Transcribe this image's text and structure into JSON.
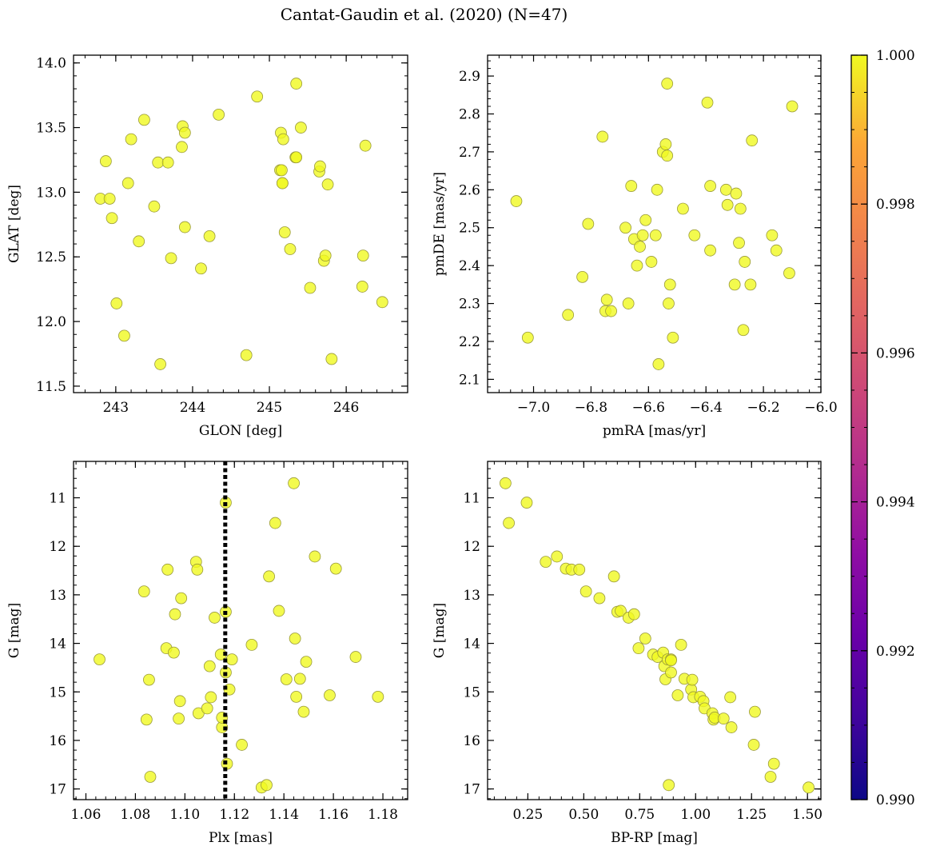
{
  "figure": {
    "title": "Cantat-Gaudin et al. (2020) (N=47)"
  },
  "chart_data": [
    {
      "type": "scatter",
      "xlabel": "GLON [deg]",
      "ylabel": "GLAT [deg]",
      "xlim": [
        242.45,
        246.8
      ],
      "ylim": [
        11.45,
        14.06
      ],
      "xticks": [
        243,
        244,
        245,
        246
      ],
      "yticks": [
        11.5,
        12.0,
        12.5,
        13.0,
        13.5,
        14.0
      ],
      "xtick_labels": [
        "243",
        "244",
        "245",
        "246"
      ],
      "ytick_labels": [
        "11.5",
        "12.0",
        "12.5",
        "13.0",
        "13.5",
        "14.0"
      ],
      "x_minor_step": 0.2,
      "y_minor_step": 0.1,
      "grid": false,
      "points": [
        [
          242.8,
          12.95
        ],
        [
          242.87,
          13.24
        ],
        [
          242.92,
          12.95
        ],
        [
          242.95,
          12.8
        ],
        [
          243.01,
          12.14
        ],
        [
          243.11,
          11.89
        ],
        [
          243.16,
          13.07
        ],
        [
          243.2,
          13.41
        ],
        [
          243.3,
          12.62
        ],
        [
          243.37,
          13.56
        ],
        [
          243.5,
          12.89
        ],
        [
          243.55,
          13.23
        ],
        [
          243.58,
          11.67
        ],
        [
          243.68,
          13.23
        ],
        [
          243.72,
          12.49
        ],
        [
          243.87,
          13.51
        ],
        [
          243.86,
          13.35
        ],
        [
          243.9,
          13.46
        ],
        [
          243.9,
          12.73
        ],
        [
          244.11,
          12.41
        ],
        [
          244.22,
          12.66
        ],
        [
          244.34,
          13.6
        ],
        [
          244.7,
          11.74
        ],
        [
          244.84,
          13.74
        ],
        [
          245.14,
          13.17
        ],
        [
          245.15,
          13.46
        ],
        [
          245.17,
          13.07
        ],
        [
          245.17,
          13.07
        ],
        [
          245.18,
          13.41
        ],
        [
          245.2,
          12.69
        ],
        [
          245.27,
          12.56
        ],
        [
          245.34,
          13.27
        ],
        [
          245.35,
          13.27
        ],
        [
          245.35,
          13.84
        ],
        [
          245.41,
          13.5
        ],
        [
          245.53,
          12.26
        ],
        [
          245.65,
          13.16
        ],
        [
          245.66,
          13.2
        ],
        [
          245.71,
          12.47
        ],
        [
          245.73,
          12.51
        ],
        [
          245.76,
          13.06
        ],
        [
          245.81,
          11.71
        ],
        [
          246.21,
          12.27
        ],
        [
          246.22,
          12.51
        ],
        [
          246.25,
          13.36
        ],
        [
          246.47,
          12.15
        ],
        [
          245.16,
          13.17
        ]
      ]
    },
    {
      "type": "scatter",
      "xlabel": "pmRA [mas/yr]",
      "ylabel": "pmDE [mas/yr]",
      "xlim": [
        -7.16,
        -6.0
      ],
      "ylim": [
        2.065,
        2.955
      ],
      "xticks": [
        -7.0,
        -6.8,
        -6.6,
        -6.4,
        -6.2,
        -6.0
      ],
      "yticks": [
        2.1,
        2.2,
        2.3,
        2.4,
        2.5,
        2.6,
        2.7,
        2.8,
        2.9
      ],
      "xtick_labels": [
        "−7.0",
        "−6.8",
        "−6.6",
        "−6.4",
        "−6.2",
        "−6.0"
      ],
      "ytick_labels": [
        "2.1",
        "2.2",
        "2.3",
        "2.4",
        "2.5",
        "2.6",
        "2.7",
        "2.8",
        "2.9"
      ],
      "x_minor_step": 0.04,
      "y_minor_step": 0.02,
      "grid": false,
      "points": [
        [
          -7.06,
          2.57
        ],
        [
          -7.02,
          2.21
        ],
        [
          -6.88,
          2.27
        ],
        [
          -6.83,
          2.37
        ],
        [
          -6.81,
          2.51
        ],
        [
          -6.76,
          2.74
        ],
        [
          -6.75,
          2.28
        ],
        [
          -6.745,
          2.31
        ],
        [
          -6.73,
          2.28
        ],
        [
          -6.68,
          2.5
        ],
        [
          -6.67,
          2.3
        ],
        [
          -6.66,
          2.61
        ],
        [
          -6.65,
          2.47
        ],
        [
          -6.64,
          2.4
        ],
        [
          -6.63,
          2.45
        ],
        [
          -6.62,
          2.48
        ],
        [
          -6.61,
          2.52
        ],
        [
          -6.59,
          2.41
        ],
        [
          -6.575,
          2.48
        ],
        [
          -6.57,
          2.6
        ],
        [
          -6.565,
          2.14
        ],
        [
          -6.55,
          2.7
        ],
        [
          -6.54,
          2.72
        ],
        [
          -6.535,
          2.69
        ],
        [
          -6.535,
          2.88
        ],
        [
          -6.53,
          2.3
        ],
        [
          -6.525,
          2.35
        ],
        [
          -6.515,
          2.21
        ],
        [
          -6.48,
          2.55
        ],
        [
          -6.44,
          2.48
        ],
        [
          -6.395,
          2.83
        ],
        [
          -6.385,
          2.61
        ],
        [
          -6.385,
          2.44
        ],
        [
          -6.33,
          2.6
        ],
        [
          -6.325,
          2.56
        ],
        [
          -6.3,
          2.35
        ],
        [
          -6.295,
          2.59
        ],
        [
          -6.285,
          2.46
        ],
        [
          -6.28,
          2.55
        ],
        [
          -6.27,
          2.23
        ],
        [
          -6.265,
          2.41
        ],
        [
          -6.245,
          2.35
        ],
        [
          -6.24,
          2.73
        ],
        [
          -6.17,
          2.48
        ],
        [
          -6.155,
          2.44
        ],
        [
          -6.11,
          2.38
        ],
        [
          -6.1,
          2.82
        ]
      ]
    },
    {
      "type": "scatter",
      "xlabel": "Plx [mas]",
      "ylabel": "G [mag]",
      "xlim": [
        1.055,
        1.19
      ],
      "ylim": [
        17.22,
        10.25
      ],
      "y_inverted": true,
      "xticks": [
        1.06,
        1.08,
        1.1,
        1.12,
        1.14,
        1.16,
        1.18
      ],
      "yticks": [
        11,
        12,
        13,
        14,
        15,
        16,
        17
      ],
      "xtick_labels": [
        "1.06",
        "1.08",
        "1.10",
        "1.12",
        "1.14",
        "1.16",
        "1.18"
      ],
      "ytick_labels": [
        "11",
        "12",
        "13",
        "14",
        "15",
        "16",
        "17"
      ],
      "x_minor_step": 0.004,
      "y_minor_step": 0.2,
      "grid": false,
      "vline": {
        "x": 1.1163,
        "style": "dotted",
        "color": "#000000"
      },
      "points": [
        [
          1.0655,
          14.33
        ],
        [
          1.0835,
          12.93
        ],
        [
          1.0845,
          15.57
        ],
        [
          1.0855,
          14.75
        ],
        [
          1.086,
          16.75
        ],
        [
          1.0925,
          14.1
        ],
        [
          1.093,
          12.48
        ],
        [
          1.0955,
          14.19
        ],
        [
          1.096,
          13.4
        ],
        [
          1.0975,
          15.55
        ],
        [
          1.098,
          15.19
        ],
        [
          1.0985,
          13.07
        ],
        [
          1.1045,
          12.32
        ],
        [
          1.105,
          12.48
        ],
        [
          1.1055,
          15.44
        ],
        [
          1.109,
          15.34
        ],
        [
          1.11,
          14.47
        ],
        [
          1.1105,
          15.11
        ],
        [
          1.112,
          13.47
        ],
        [
          1.1145,
          14.23
        ],
        [
          1.115,
          15.73
        ],
        [
          1.115,
          15.53
        ],
        [
          1.1165,
          11.1
        ],
        [
          1.1165,
          13.35
        ],
        [
          1.1165,
          14.6
        ],
        [
          1.117,
          16.48
        ],
        [
          1.118,
          14.95
        ],
        [
          1.119,
          14.33
        ],
        [
          1.123,
          16.09
        ],
        [
          1.127,
          14.03
        ],
        [
          1.131,
          16.97
        ],
        [
          1.133,
          16.92
        ],
        [
          1.134,
          12.62
        ],
        [
          1.1365,
          11.52
        ],
        [
          1.138,
          13.33
        ],
        [
          1.141,
          14.74
        ],
        [
          1.144,
          10.7
        ],
        [
          1.1445,
          13.9
        ],
        [
          1.145,
          15.1
        ],
        [
          1.1465,
          14.73
        ],
        [
          1.148,
          15.41
        ],
        [
          1.149,
          14.38
        ],
        [
          1.1525,
          12.21
        ],
        [
          1.1585,
          15.07
        ],
        [
          1.161,
          12.46
        ],
        [
          1.169,
          14.28
        ],
        [
          1.178,
          15.1
        ]
      ]
    },
    {
      "type": "scatter",
      "xlabel": "BP-RP [mag]",
      "ylabel": "G [mag]",
      "xlim": [
        0.07,
        1.56
      ],
      "ylim": [
        17.22,
        10.25
      ],
      "y_inverted": true,
      "xticks": [
        0.25,
        0.5,
        0.75,
        1.0,
        1.25,
        1.5
      ],
      "yticks": [
        11,
        12,
        13,
        14,
        15,
        16,
        17
      ],
      "xtick_labels": [
        "0.25",
        "0.50",
        "0.75",
        "1.00",
        "1.25",
        "1.50"
      ],
      "ytick_labels": [
        "11",
        "12",
        "13",
        "14",
        "15",
        "16",
        "17"
      ],
      "x_minor_step": 0.05,
      "y_minor_step": 0.2,
      "grid": false,
      "points": [
        [
          0.15,
          10.7
        ],
        [
          0.165,
          11.52
        ],
        [
          0.245,
          11.1
        ],
        [
          0.33,
          12.32
        ],
        [
          0.38,
          12.21
        ],
        [
          0.42,
          12.46
        ],
        [
          0.445,
          12.48
        ],
        [
          0.48,
          12.48
        ],
        [
          0.51,
          12.93
        ],
        [
          0.57,
          13.07
        ],
        [
          0.635,
          12.62
        ],
        [
          0.65,
          13.35
        ],
        [
          0.665,
          13.33
        ],
        [
          0.7,
          13.47
        ],
        [
          0.725,
          13.4
        ],
        [
          0.745,
          14.1
        ],
        [
          0.775,
          13.9
        ],
        [
          0.81,
          14.23
        ],
        [
          0.83,
          14.28
        ],
        [
          0.855,
          14.19
        ],
        [
          0.86,
          14.47
        ],
        [
          0.865,
          14.74
        ],
        [
          0.875,
          14.33
        ],
        [
          0.88,
          16.92
        ],
        [
          0.89,
          14.33
        ],
        [
          0.89,
          14.6
        ],
        [
          0.92,
          15.07
        ],
        [
          0.935,
          14.03
        ],
        [
          0.95,
          14.73
        ],
        [
          0.98,
          14.95
        ],
        [
          0.985,
          14.75
        ],
        [
          0.99,
          15.11
        ],
        [
          1.02,
          15.1
        ],
        [
          1.035,
          15.19
        ],
        [
          1.04,
          15.34
        ],
        [
          1.075,
          15.44
        ],
        [
          1.08,
          15.57
        ],
        [
          1.085,
          15.53
        ],
        [
          1.125,
          15.55
        ],
        [
          1.155,
          15.11
        ],
        [
          1.16,
          15.73
        ],
        [
          1.26,
          16.09
        ],
        [
          1.265,
          15.41
        ],
        [
          1.335,
          16.75
        ],
        [
          1.35,
          16.48
        ],
        [
          1.505,
          16.97
        ],
        [
          0.89,
          14.35
        ]
      ]
    }
  ],
  "colorbar": {
    "cmap": "plasma",
    "range": [
      0.99,
      1.0
    ],
    "ticks": [
      0.99,
      0.992,
      0.994,
      0.996,
      0.998,
      1.0
    ],
    "tick_labels": [
      "0.990",
      "0.992",
      "0.994",
      "0.996",
      "0.998",
      "1.000"
    ],
    "minor_step": 0.0005,
    "point_value": 1.0
  },
  "style": {
    "marker_color": "#f0f921",
    "marker_edge": "#9a9a3a",
    "marker_alpha": 0.8
  }
}
